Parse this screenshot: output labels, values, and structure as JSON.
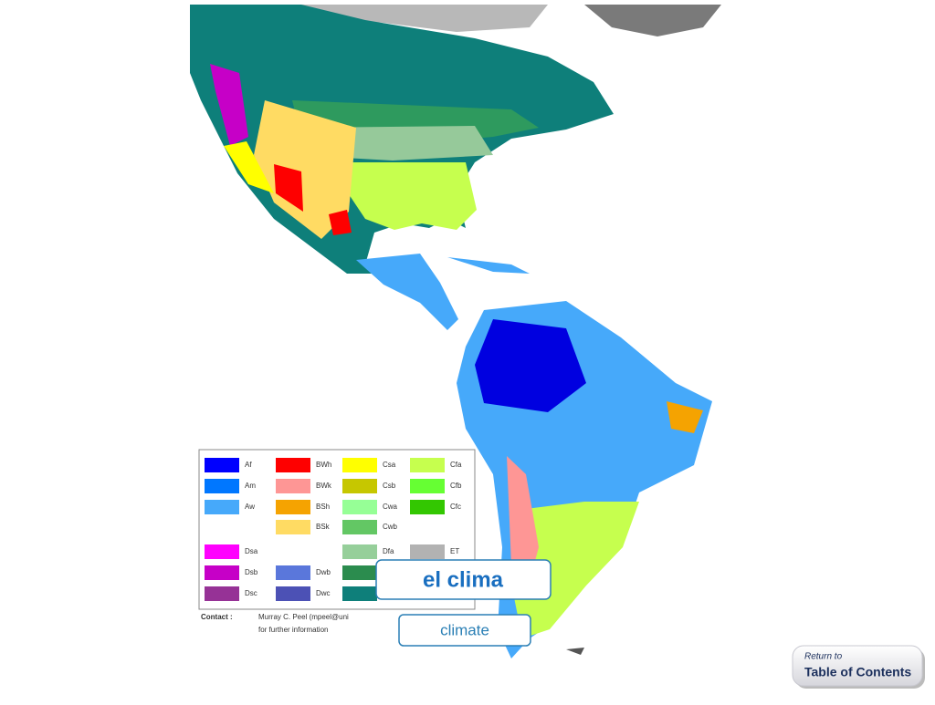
{
  "header": {
    "title": "el clima",
    "subtitle": "climate"
  },
  "legend": {
    "columns": [
      [
        {
          "label": "Af",
          "color": "#0000fe"
        },
        {
          "label": "Am",
          "color": "#0077ff"
        },
        {
          "label": "Aw",
          "color": "#46a9fa"
        },
        null,
        {
          "label": "Dsa",
          "color": "#ff00fe"
        },
        {
          "label": "Dsb",
          "color": "#c600c7"
        },
        {
          "label": "Dsc",
          "color": "#963296"
        }
      ],
      [
        {
          "label": "BWh",
          "color": "#fe0000"
        },
        {
          "label": "BWk",
          "color": "#fe9695"
        },
        {
          "label": "BSh",
          "color": "#f5a301"
        },
        {
          "label": "BSk",
          "color": "#ffdb63"
        },
        null,
        {
          "label": "Dwb",
          "color": "#5a77db"
        },
        {
          "label": "Dwc",
          "color": "#4c51b5"
        }
      ],
      [
        {
          "label": "Csa",
          "color": "#ffff00"
        },
        {
          "label": "Csb",
          "color": "#c6c700"
        },
        {
          "label": "Cwa",
          "color": "#96ff96"
        },
        {
          "label": "Cwb",
          "color": "#63c764"
        },
        {
          "label": "Dfa",
          "color": "#96cf9a"
        }
      ],
      [
        {
          "label": "Cfa",
          "color": "#c6ff4e"
        },
        {
          "label": "Cfb",
          "color": "#66ff33"
        },
        {
          "label": "Cfc",
          "color": "#33c701"
        },
        null,
        {
          "label": "ET",
          "color": "#b2b2b2"
        }
      ]
    ]
  },
  "contact": {
    "label": "Contact :",
    "line1": "Murray C. Peel (mpeel@uni",
    "line2": "for further information"
  },
  "nav": {
    "prefix": "Return to",
    "link": "Table of Contents"
  }
}
